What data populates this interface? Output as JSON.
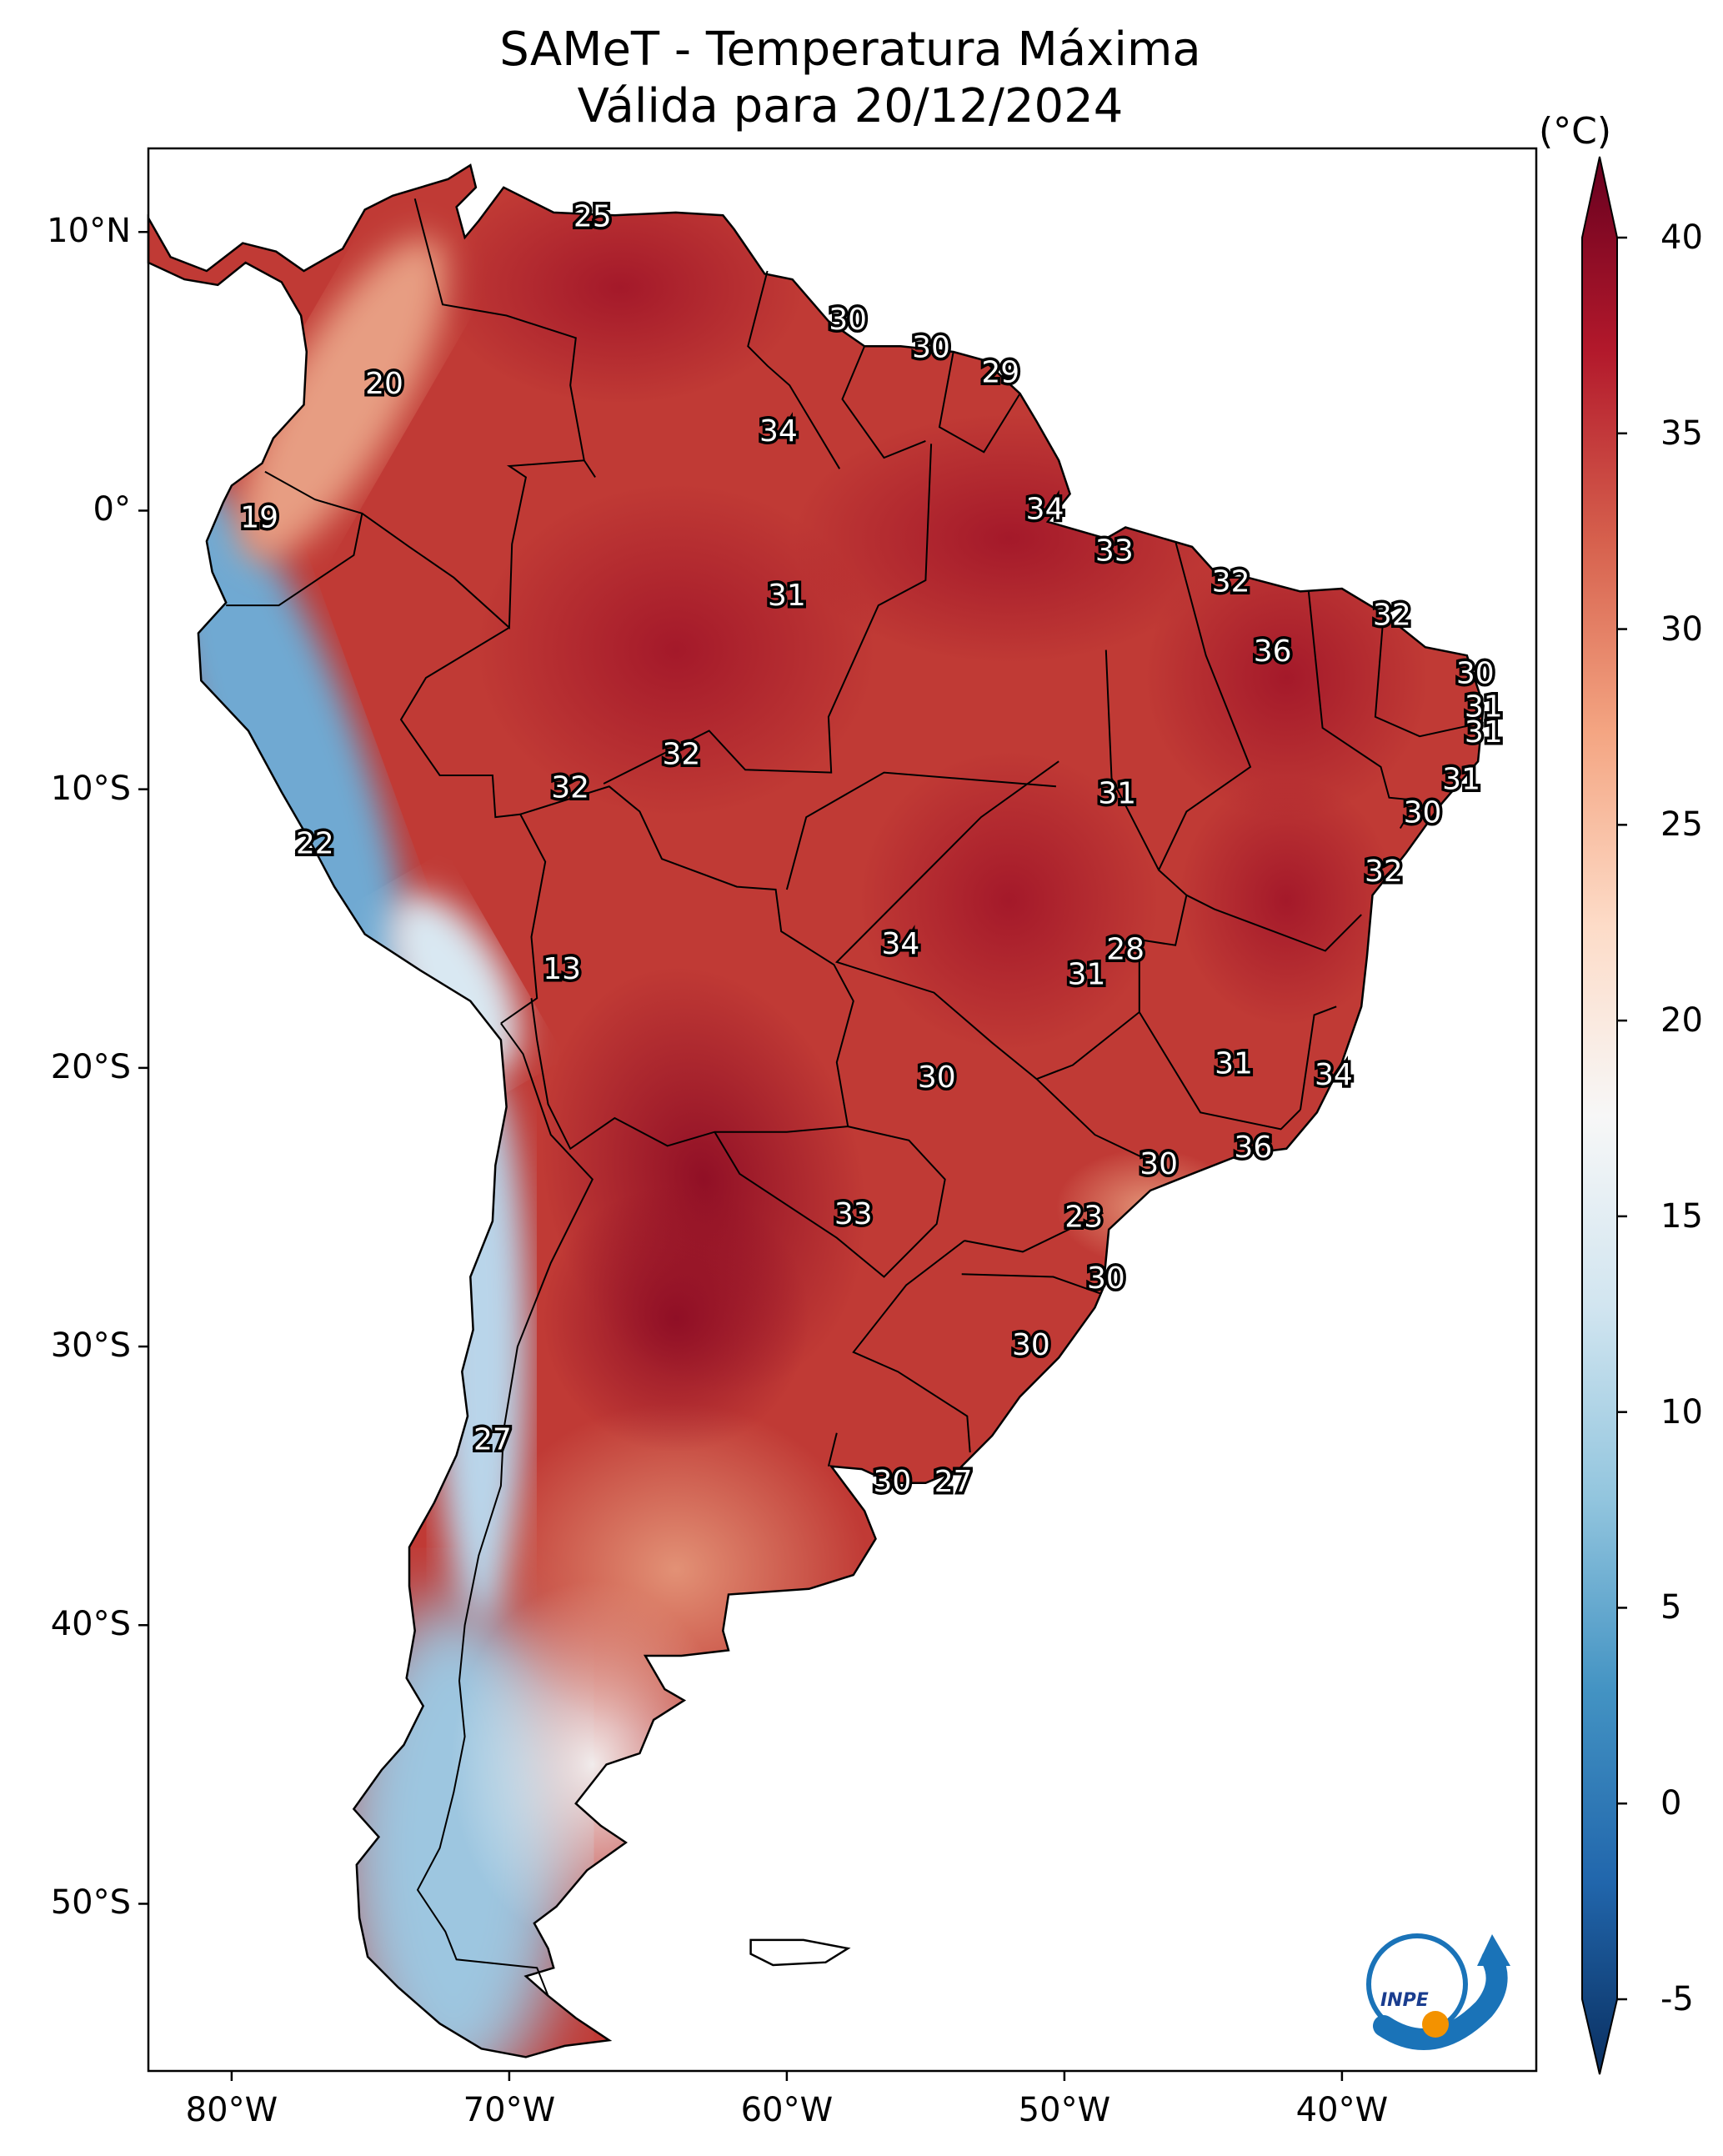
{
  "map": {
    "title_line1": "SAMeT - Temperatura Máxima",
    "title_line2": "Válida para 20/12/2024",
    "region": "South America",
    "variable": "Maximum temperature",
    "lon_range": [
      -83,
      -33
    ],
    "lat_range": [
      -56,
      13
    ]
  },
  "lat_ticks": [
    "10°N",
    "0°",
    "10°S",
    "20°S",
    "30°S",
    "40°S",
    "50°S"
  ],
  "lon_ticks": [
    "80°W",
    "70°W",
    "60°W",
    "50°W",
    "40°W"
  ],
  "colorbar": {
    "unit": "(°C)",
    "ticks": [
      "40",
      "35",
      "30",
      "25",
      "20",
      "15",
      "10",
      "5",
      "0",
      "-5"
    ],
    "min": -5,
    "max": 40,
    "colormap": "RdBu_r",
    "colors": [
      "#0a2f60",
      "#2166ac",
      "#4393c3",
      "#92c5de",
      "#d1e5f0",
      "#f7f7f7",
      "#fddbc7",
      "#f4a582",
      "#d6604d",
      "#b2182b",
      "#67001f"
    ]
  },
  "annotations": [
    {
      "label": "25",
      "lon": -67.0,
      "lat": 10.5
    },
    {
      "label": "20",
      "lon": -74.5,
      "lat": 4.5
    },
    {
      "label": "19",
      "lon": -79.0,
      "lat": -0.3
    },
    {
      "label": "30",
      "lon": -57.8,
      "lat": 6.8
    },
    {
      "label": "30",
      "lon": -54.8,
      "lat": 5.8
    },
    {
      "label": "29",
      "lon": -52.3,
      "lat": 4.9
    },
    {
      "label": "34",
      "lon": -60.3,
      "lat": 2.8
    },
    {
      "label": "34",
      "lon": -50.7,
      "lat": 0.0
    },
    {
      "label": "33",
      "lon": -48.2,
      "lat": -1.5
    },
    {
      "label": "31",
      "lon": -60.0,
      "lat": -3.1
    },
    {
      "label": "32",
      "lon": -44.0,
      "lat": -2.6
    },
    {
      "label": "32",
      "lon": -38.2,
      "lat": -3.8
    },
    {
      "label": "36",
      "lon": -42.5,
      "lat": -5.1
    },
    {
      "label": "30",
      "lon": -35.2,
      "lat": -5.9
    },
    {
      "label": "31",
      "lon": -34.9,
      "lat": -7.1
    },
    {
      "label": "31",
      "lon": -34.9,
      "lat": -8.0
    },
    {
      "label": "31",
      "lon": -35.7,
      "lat": -9.7
    },
    {
      "label": "30",
      "lon": -37.1,
      "lat": -10.9
    },
    {
      "label": "32",
      "lon": -63.8,
      "lat": -8.8
    },
    {
      "label": "32",
      "lon": -67.8,
      "lat": -10.0
    },
    {
      "label": "31",
      "lon": -48.1,
      "lat": -10.2
    },
    {
      "label": "32",
      "lon": -38.5,
      "lat": -13.0
    },
    {
      "label": "22",
      "lon": -77.0,
      "lat": -12.0
    },
    {
      "label": "13",
      "lon": -68.1,
      "lat": -16.5
    },
    {
      "label": "34",
      "lon": -55.9,
      "lat": -15.6
    },
    {
      "label": "28",
      "lon": -47.8,
      "lat": -15.8
    },
    {
      "label": "31",
      "lon": -49.2,
      "lat": -16.7
    },
    {
      "label": "31",
      "lon": -43.9,
      "lat": -19.9
    },
    {
      "label": "34",
      "lon": -40.3,
      "lat": -20.3
    },
    {
      "label": "30",
      "lon": -54.6,
      "lat": -20.4
    },
    {
      "label": "36",
      "lon": -43.2,
      "lat": -22.9
    },
    {
      "label": "30",
      "lon": -46.6,
      "lat": -23.5
    },
    {
      "label": "23",
      "lon": -49.3,
      "lat": -25.4
    },
    {
      "label": "33",
      "lon": -57.6,
      "lat": -25.3
    },
    {
      "label": "30",
      "lon": -48.5,
      "lat": -27.6
    },
    {
      "label": "30",
      "lon": -51.2,
      "lat": -30.0
    },
    {
      "label": "27",
      "lon": -70.6,
      "lat": -33.4
    },
    {
      "label": "30",
      "lon": -56.2,
      "lat": -34.9
    },
    {
      "label": "27",
      "lon": -54.0,
      "lat": -34.9
    }
  ],
  "logo": {
    "text": "INPE"
  }
}
